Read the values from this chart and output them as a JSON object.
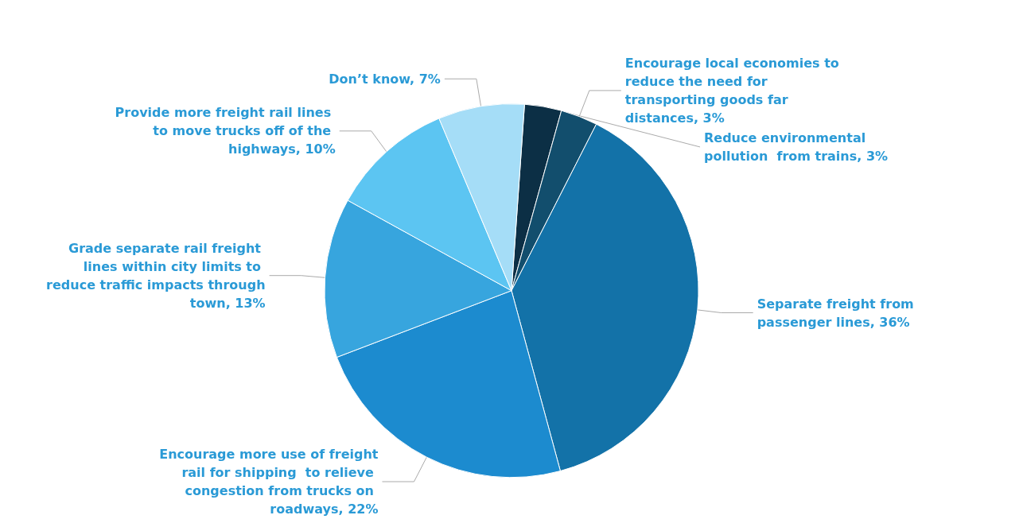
{
  "chart_data": {
    "type": "pie",
    "categories": [
      "Reduce environmental pollution  from trains, 3%",
      "Encourage local economies to reduce the need for transporting goods far distances, 3%",
      "Separate freight from passenger lines, 36%",
      "Encourage more use of freight rail for shipping  to relieve congestion from trucks on roadways, 22%",
      "Grade separate rail freight lines within city limits to reduce traffic impacts through town, 13%",
      "Provide more freight rail lines to move trucks off of the highways, 10%",
      "Don’t know, 7%"
    ],
    "values": [
      3,
      3,
      36,
      22,
      13,
      10,
      7
    ],
    "colors": [
      "#0c2f45",
      "#124e6d",
      "#1372a8",
      "#1c8bcf",
      "#37a5de",
      "#5cc5f2",
      "#a5ddf7"
    ],
    "legend": false
  }
}
